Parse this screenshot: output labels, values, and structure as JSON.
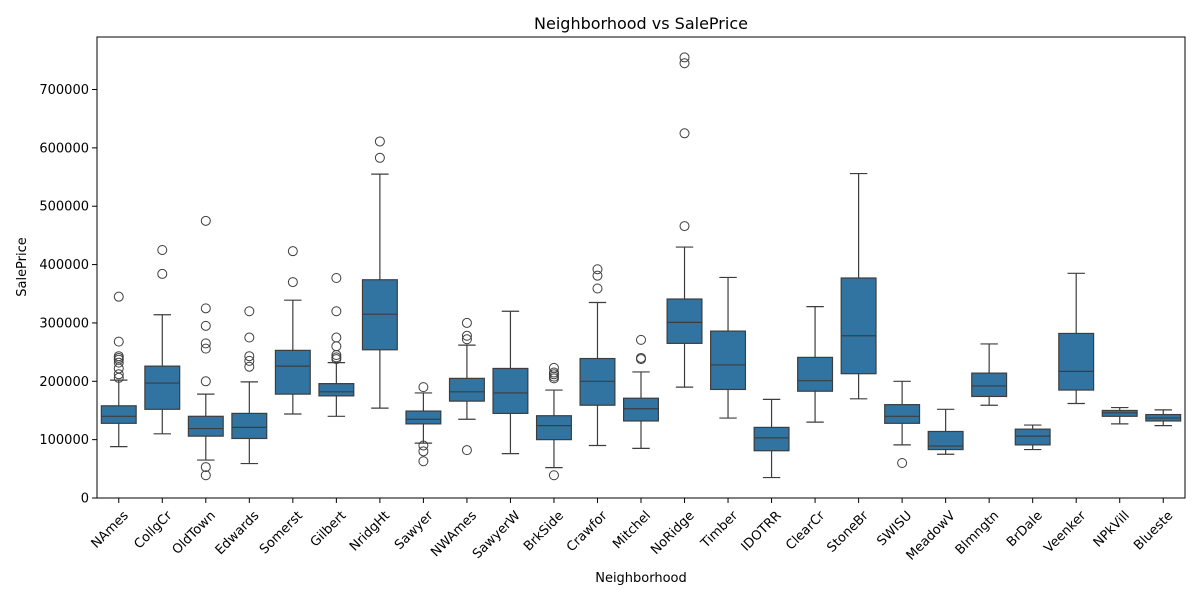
{
  "chart_data": {
    "type": "box",
    "title": "Neighborhood vs SalePrice",
    "xlabel": "Neighborhood",
    "ylabel": "SalePrice",
    "ylim": [
      0,
      790000
    ],
    "yticks": [
      0,
      100000,
      200000,
      300000,
      400000,
      500000,
      600000,
      700000
    ],
    "grid": false,
    "box_color": "#3274a1",
    "line_color": "#3d3d3d",
    "categories": [
      "NAmes",
      "CollgCr",
      "OldTown",
      "Edwards",
      "Somerst",
      "Gilbert",
      "NridgHt",
      "Sawyer",
      "NWAmes",
      "SawyerW",
      "BrkSide",
      "Crawfor",
      "Mitchel",
      "NoRidge",
      "Timber",
      "IDOTRR",
      "ClearCr",
      "StoneBr",
      "SWISU",
      "MeadowV",
      "Blmngtn",
      "BrDale",
      "Veenker",
      "NPkVill",
      "Blueste"
    ],
    "boxes": [
      {
        "q1": 128000,
        "median": 140000,
        "q3": 158000,
        "whislo": 88000,
        "whishi": 202000,
        "fliers": [
          345000,
          268000,
          243000,
          240000,
          237000,
          232000,
          222000,
          212000,
          206000
        ]
      },
      {
        "q1": 152000,
        "median": 197000,
        "q3": 226000,
        "whislo": 110000,
        "whishi": 314000,
        "fliers": [
          425000,
          384000
        ]
      },
      {
        "q1": 106000,
        "median": 119000,
        "q3": 140000,
        "whislo": 65000,
        "whishi": 178000,
        "fliers": [
          475000,
          325000,
          295000,
          265000,
          256000,
          200000,
          53000,
          39000
        ]
      },
      {
        "q1": 102000,
        "median": 121000,
        "q3": 145000,
        "whislo": 59000,
        "whishi": 199000,
        "fliers": [
          320000,
          275000,
          243000,
          235000,
          225000
        ]
      },
      {
        "q1": 178000,
        "median": 226000,
        "q3": 253000,
        "whislo": 144000,
        "whishi": 339000,
        "fliers": [
          423000,
          370000
        ]
      },
      {
        "q1": 175000,
        "median": 182000,
        "q3": 196000,
        "whislo": 140000,
        "whishi": 232000,
        "fliers": [
          377000,
          320000,
          275000,
          260000,
          245000,
          241000,
          238000
        ]
      },
      {
        "q1": 254000,
        "median": 315000,
        "q3": 374000,
        "whislo": 154000,
        "whishi": 555000,
        "fliers": [
          611000,
          583000
        ]
      },
      {
        "q1": 127000,
        "median": 135000,
        "q3": 149000,
        "whislo": 94000,
        "whishi": 180000,
        "fliers": [
          190000,
          90000,
          80000,
          63000
        ]
      },
      {
        "q1": 166000,
        "median": 182000,
        "q3": 205000,
        "whislo": 135000,
        "whishi": 262000,
        "fliers": [
          300000,
          278000,
          272000,
          82000
        ]
      },
      {
        "q1": 145000,
        "median": 180000,
        "q3": 222000,
        "whislo": 76000,
        "whishi": 320000,
        "fliers": []
      },
      {
        "q1": 100000,
        "median": 124000,
        "q3": 141000,
        "whislo": 52000,
        "whishi": 185000,
        "fliers": [
          223000,
          215000,
          212000,
          208000,
          205000,
          39000
        ]
      },
      {
        "q1": 159000,
        "median": 200000,
        "q3": 239000,
        "whislo": 90000,
        "whishi": 335000,
        "fliers": [
          392000,
          381000,
          359000
        ]
      },
      {
        "q1": 132000,
        "median": 153000,
        "q3": 171000,
        "whislo": 85000,
        "whishi": 216000,
        "fliers": [
          271000,
          240000,
          238000
        ]
      },
      {
        "q1": 265000,
        "median": 301000,
        "q3": 341000,
        "whislo": 190000,
        "whishi": 430000,
        "fliers": [
          755000,
          745000,
          625000,
          466000
        ]
      },
      {
        "q1": 186000,
        "median": 228000,
        "q3": 286000,
        "whislo": 137000,
        "whishi": 378000,
        "fliers": []
      },
      {
        "q1": 81000,
        "median": 103000,
        "q3": 121000,
        "whislo": 35000,
        "whishi": 169000,
        "fliers": []
      },
      {
        "q1": 183000,
        "median": 201000,
        "q3": 241000,
        "whislo": 130000,
        "whishi": 328000,
        "fliers": []
      },
      {
        "q1": 213000,
        "median": 278000,
        "q3": 377000,
        "whislo": 170000,
        "whishi": 556000,
        "fliers": []
      },
      {
        "q1": 128000,
        "median": 140000,
        "q3": 160000,
        "whislo": 91000,
        "whishi": 200000,
        "fliers": [
          60000
        ]
      },
      {
        "q1": 83000,
        "median": 89000,
        "q3": 114000,
        "whislo": 75000,
        "whishi": 152000,
        "fliers": []
      },
      {
        "q1": 174000,
        "median": 192000,
        "q3": 214000,
        "whislo": 159000,
        "whishi": 264000,
        "fliers": []
      },
      {
        "q1": 91000,
        "median": 106000,
        "q3": 118000,
        "whislo": 83000,
        "whishi": 125000,
        "fliers": []
      },
      {
        "q1": 185000,
        "median": 217000,
        "q3": 282000,
        "whislo": 162000,
        "whishi": 385000,
        "fliers": []
      },
      {
        "q1": 140000,
        "median": 146000,
        "q3": 150000,
        "whislo": 127000,
        "whishi": 155000,
        "fliers": []
      },
      {
        "q1": 132000,
        "median": 137000,
        "q3": 143000,
        "whislo": 124000,
        "whishi": 151000,
        "fliers": []
      }
    ]
  }
}
